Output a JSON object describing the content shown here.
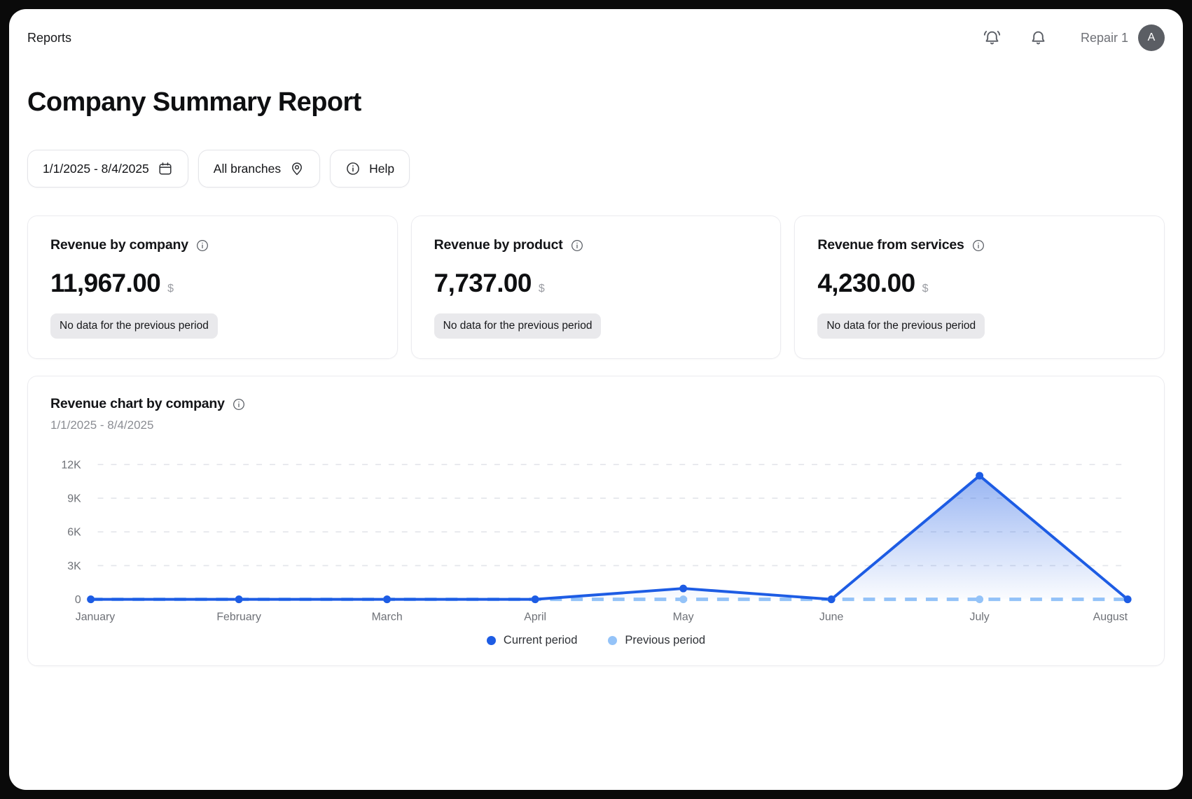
{
  "header": {
    "breadcrumb": "Reports",
    "workspace_name": "Repair 1",
    "avatar_initial": "A"
  },
  "page": {
    "title": "Company Summary Report"
  },
  "filters": {
    "date_range": "1/1/2025 - 8/4/2025",
    "branch": "All branches",
    "help_label": "Help"
  },
  "cards": [
    {
      "title": "Revenue by company",
      "value": "11,967.00",
      "currency": "$",
      "badge": "No data for the previous period"
    },
    {
      "title": "Revenue by product",
      "value": "7,737.00",
      "currency": "$",
      "badge": "No data for the previous period"
    },
    {
      "title": "Revenue from services",
      "value": "4,230.00",
      "currency": "$",
      "badge": "No data for the previous period"
    }
  ],
  "chart_card": {
    "title": "Revenue chart by company",
    "subtitle": "1/1/2025 - 8/4/2025"
  },
  "chart_data": {
    "type": "line",
    "categories": [
      "January",
      "February",
      "March",
      "April",
      "May",
      "June",
      "July",
      "August"
    ],
    "series": [
      {
        "name": "Current period",
        "color": "#1d5ce4",
        "style": "solid",
        "area": true,
        "values": [
          0,
          0,
          0,
          0,
          967,
          0,
          11000,
          0
        ]
      },
      {
        "name": "Previous period",
        "color": "#94c3f8",
        "style": "dashed",
        "area": false,
        "values": [
          0,
          0,
          0,
          0,
          0,
          0,
          0,
          0
        ]
      }
    ],
    "ylim": [
      0,
      12000
    ],
    "yticks": [
      "0",
      "3K",
      "6K",
      "9K",
      "12K"
    ],
    "grid": "horizontal-dashed",
    "legend_position": "bottom-center"
  },
  "legend": [
    {
      "label": "Current period",
      "color": "#1d5ce4"
    },
    {
      "label": "Previous period",
      "color": "#94c3f8"
    }
  ],
  "colors": {
    "accent_blue": "#1d5ce4",
    "light_blue": "#94c3f8",
    "grid_gray": "#e3e5ea",
    "badge_bg": "#e9e9ec"
  }
}
